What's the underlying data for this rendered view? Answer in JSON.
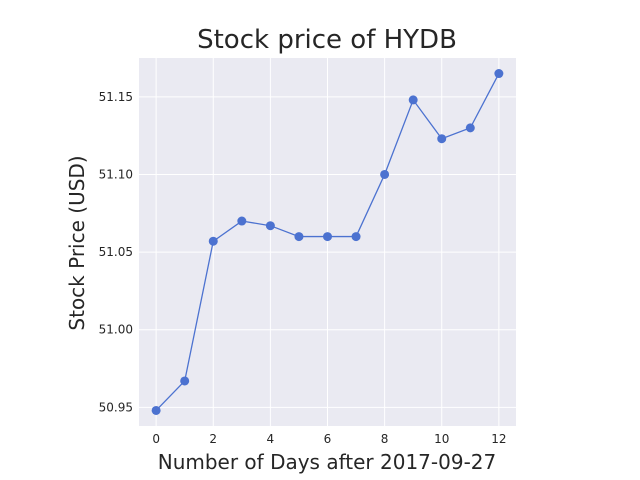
{
  "chart_data": {
    "type": "line",
    "title": "Stock price of HYDB",
    "xlabel": "Number of Days after 2017-09-27",
    "ylabel": "Stock Price (USD)",
    "x": [
      0,
      1,
      2,
      3,
      4,
      5,
      6,
      7,
      8,
      9,
      10,
      11,
      12
    ],
    "series": [
      {
        "values": [
          50.948,
          50.967,
          51.057,
          51.07,
          51.067,
          51.06,
          51.06,
          51.06,
          51.1,
          51.148,
          51.123,
          51.13,
          51.165
        ]
      }
    ],
    "xlim": [
      -0.6,
      12.6
    ],
    "ylim": [
      50.938,
      51.175
    ],
    "x_ticks": [
      "0",
      "2",
      "4",
      "6",
      "8",
      "10",
      "12"
    ],
    "y_ticks": [
      "50.95",
      "51.00",
      "51.05",
      "51.10",
      "51.15"
    ],
    "grid": true,
    "colors": {
      "line": "#4c72d0",
      "plot_background": "#eaeaf2",
      "grid": "#ffffff",
      "text": "#262626"
    }
  }
}
